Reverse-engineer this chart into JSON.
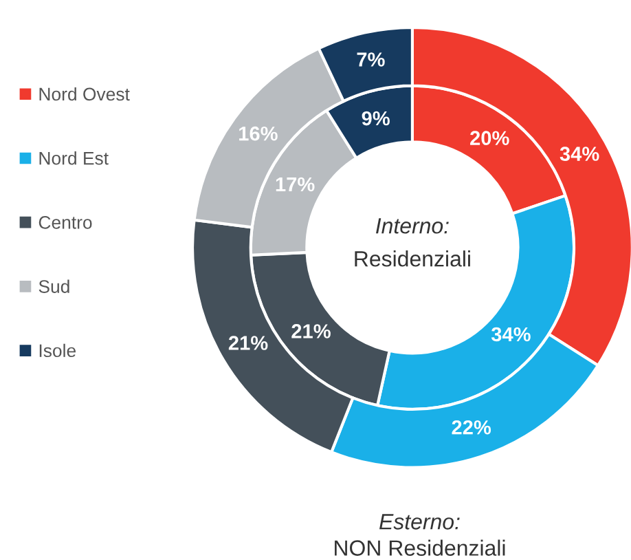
{
  "chart_data": {
    "type": "donut",
    "categories": [
      "Nord Ovest",
      "Nord Est",
      "Centro",
      "Sud",
      "Isole"
    ],
    "colors": [
      "#f03a2e",
      "#1ab0e8",
      "#44505a",
      "#b8bcc0",
      "#163a5f"
    ],
    "series": [
      {
        "values": [
          20,
          34,
          21,
          17,
          9
        ],
        "value_labels": [
          "20%",
          "34%",
          "21%",
          "17%",
          "9%"
        ]
      },
      {
        "values": [
          34,
          22,
          21,
          16,
          7
        ],
        "value_labels": [
          "34%",
          "22%",
          "21%",
          "16%",
          "7%"
        ]
      }
    ],
    "annotations": [
      "Interno:",
      "Residenziali",
      "Esterno:",
      "NON Residenziali"
    ],
    "legend": "left",
    "marker": "square"
  }
}
